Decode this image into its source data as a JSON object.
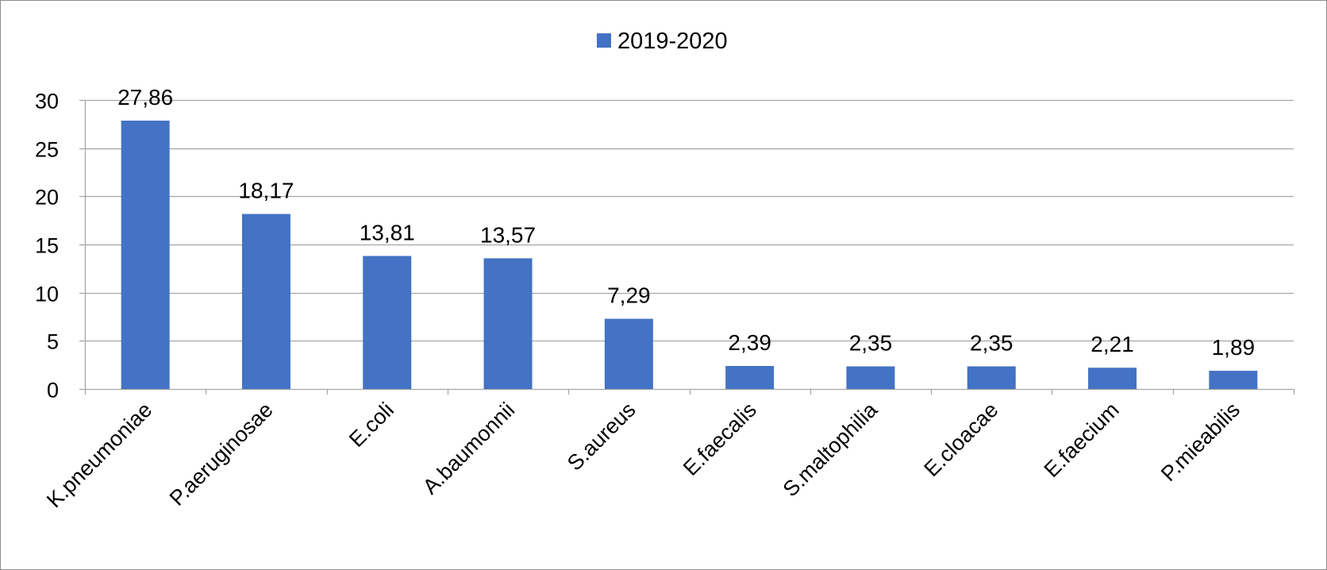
{
  "chart_data": {
    "type": "bar",
    "categories": [
      "K.pneumoniae",
      "P.aeruginosae",
      "E.coli",
      "A.baumonnii",
      "S.aureus",
      "E.faecalis",
      "S.maltophilia",
      "E.cloacae",
      "E.faecium",
      "P.mieabilis"
    ],
    "series": [
      {
        "name": "2019-2020",
        "values": [
          27.86,
          18.17,
          13.81,
          13.57,
          7.29,
          2.39,
          2.35,
          2.35,
          2.21,
          1.89
        ],
        "labels": [
          "27,86",
          "18,17",
          "13,81",
          "13,57",
          "7,29",
          "2,39",
          "2,35",
          "2,35",
          "2,21",
          "1,89"
        ],
        "color": "#4472C4"
      }
    ],
    "yticks": [
      "0",
      "5",
      "10",
      "15",
      "20",
      "25",
      "30"
    ],
    "ylim": [
      0,
      30
    ],
    "grid": true,
    "legend_position": "top-center",
    "gridline_color": "#A6A6A6",
    "axis_color": "#A6A6A6"
  }
}
